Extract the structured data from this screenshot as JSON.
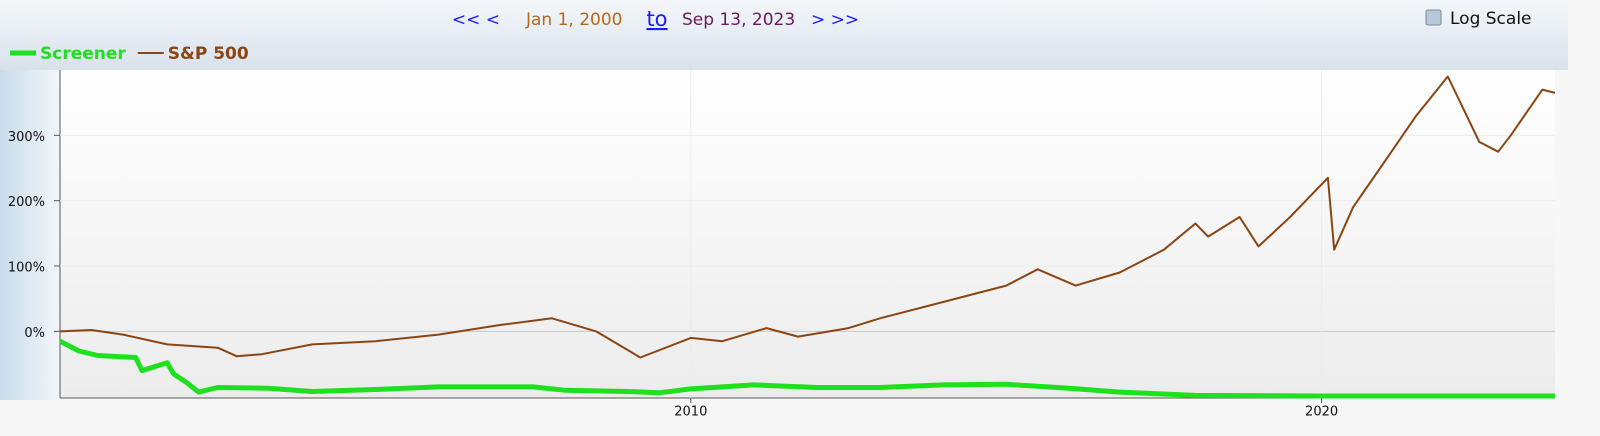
{
  "controls": {
    "back": "<< <",
    "start": "Jan 1, 2000",
    "to": "to",
    "end": "Sep 13, 2023",
    "forward": "> >>",
    "log_scale_label": "Log Scale"
  },
  "chart_data": {
    "type": "line",
    "log_scale": false,
    "grid": true,
    "xlim": [
      2000,
      2023.7
    ],
    "xticks": [
      2010,
      2020
    ],
    "ylim": [
      -102,
      400
    ],
    "yticks": [
      {
        "value": 0,
        "label": "0%"
      },
      {
        "value": 100,
        "label": "100%"
      },
      {
        "value": 200,
        "label": "200%"
      },
      {
        "value": 300,
        "label": "300%"
      }
    ],
    "series": [
      {
        "name": "Screener",
        "color": "#1ee01e",
        "width": 5,
        "x": [
          2000,
          2000.3,
          2000.6,
          2001.2,
          2001.3,
          2001.7,
          2001.8,
          2002.0,
          2002.2,
          2002.5,
          2003.3,
          2004.0,
          2005.0,
          2006.0,
          2007.5,
          2008.0,
          2009.0,
          2009.5,
          2010.0,
          2011.0,
          2012.0,
          2013.0,
          2014.0,
          2015.0,
          2016.0,
          2016.8,
          2018.0,
          2020.0,
          2023.7
        ],
        "values": [
          -15,
          -30,
          -37,
          -40,
          -60,
          -48,
          -65,
          -78,
          -93,
          -86,
          -87,
          -92,
          -89,
          -85,
          -85,
          -90,
          -92,
          -94,
          -88,
          -82,
          -86,
          -86,
          -82,
          -81,
          -87,
          -93,
          -98,
          -99,
          -99
        ]
      },
      {
        "name": "S&P 500",
        "color": "#8b4513",
        "width": 2,
        "x": [
          2000.0,
          2000.5,
          2001.0,
          2001.7,
          2002.5,
          2002.8,
          2003.2,
          2004.0,
          2005.0,
          2006.0,
          2007.0,
          2007.8,
          2008.5,
          2009.2,
          2010.0,
          2010.5,
          2011.2,
          2011.7,
          2012.5,
          2013.0,
          2014.0,
          2015.0,
          2015.5,
          2016.1,
          2016.8,
          2017.5,
          2018.0,
          2018.2,
          2018.7,
          2019.0,
          2019.5,
          2020.1,
          2020.2,
          2020.5,
          2021.0,
          2021.5,
          2022.0,
          2022.5,
          2022.8,
          2023.0,
          2023.5,
          2023.7
        ],
        "values": [
          0,
          2,
          -5,
          -20,
          -25,
          -38,
          -35,
          -20,
          -15,
          -5,
          10,
          20,
          0,
          -40,
          -10,
          -15,
          5,
          -8,
          5,
          20,
          45,
          70,
          95,
          70,
          90,
          125,
          165,
          145,
          175,
          130,
          175,
          235,
          125,
          190,
          260,
          330,
          390,
          290,
          275,
          300,
          370,
          365
        ]
      }
    ]
  }
}
